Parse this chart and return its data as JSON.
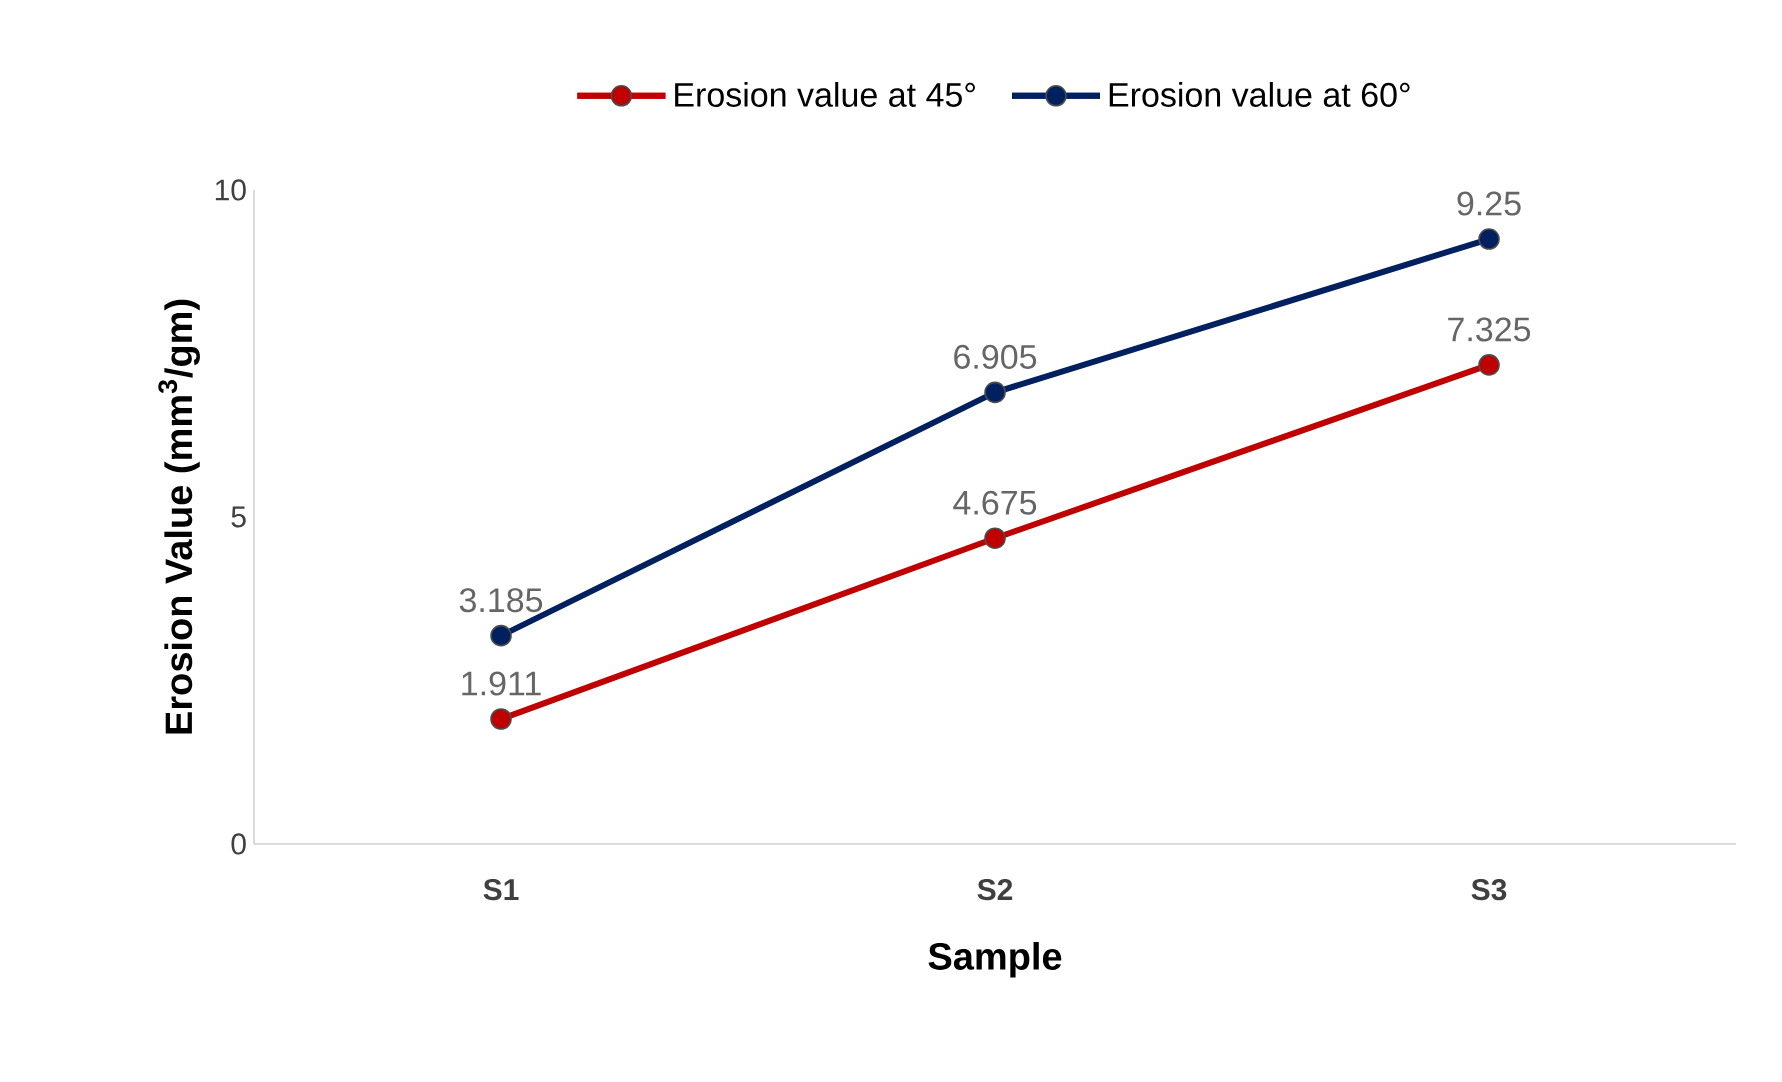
{
  "chart_data": {
    "type": "line",
    "xlabel": "Sample",
    "ylabel": "Erosion Value (mm$^{3}$/gm)",
    "categories": [
      "S1",
      "S2",
      "S3"
    ],
    "series": [
      {
        "name": "Erosion value at 45°",
        "color": "#c00000",
        "values": [
          1.911,
          4.675,
          7.325
        ]
      },
      {
        "name": "Erosion value at 60°",
        "color": "#002060",
        "values": [
          3.185,
          6.905,
          9.25
        ]
      }
    ],
    "ylim": [
      0,
      10
    ],
    "yticks": [
      0,
      5,
      10
    ],
    "grid": false,
    "legend": "top",
    "marker": "circle",
    "line_style": "solid",
    "data_labels": true
  }
}
